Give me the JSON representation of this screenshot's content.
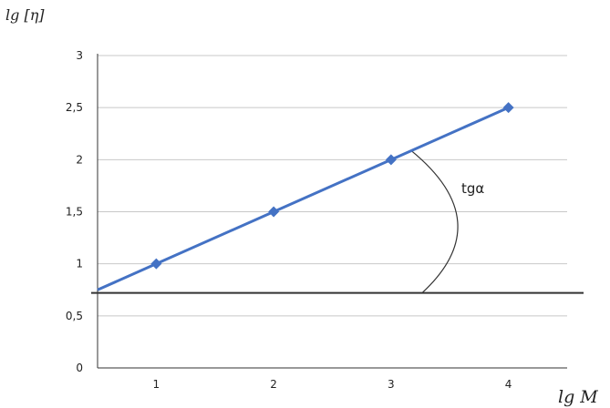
{
  "chart_data": {
    "type": "line",
    "title": "",
    "xlabel": "lg M",
    "ylabel": "lg [η]",
    "xlim": [
      0.5,
      4.5
    ],
    "ylim": [
      0,
      3
    ],
    "x_ticks": [
      1,
      2,
      3,
      4
    ],
    "x_tick_labels": [
      "1",
      "2",
      "3",
      "4"
    ],
    "y_ticks": [
      0,
      0.5,
      1,
      1.5,
      2,
      2.5,
      3
    ],
    "y_tick_labels": [
      "0",
      "0,5",
      "1",
      "1,5",
      "2",
      "2,5",
      "3"
    ],
    "grid": true,
    "series": [
      {
        "x": [
          0.5,
          1,
          2,
          3,
          4
        ],
        "y": [
          0.75,
          1,
          1.5,
          2,
          2.5
        ],
        "color": "#4472c4"
      }
    ],
    "reference_line_y": 0.72,
    "annotation": "tgα"
  },
  "colors": {
    "series": "#4472c4",
    "grid": "#c8c8c8",
    "axis": "#333333"
  }
}
